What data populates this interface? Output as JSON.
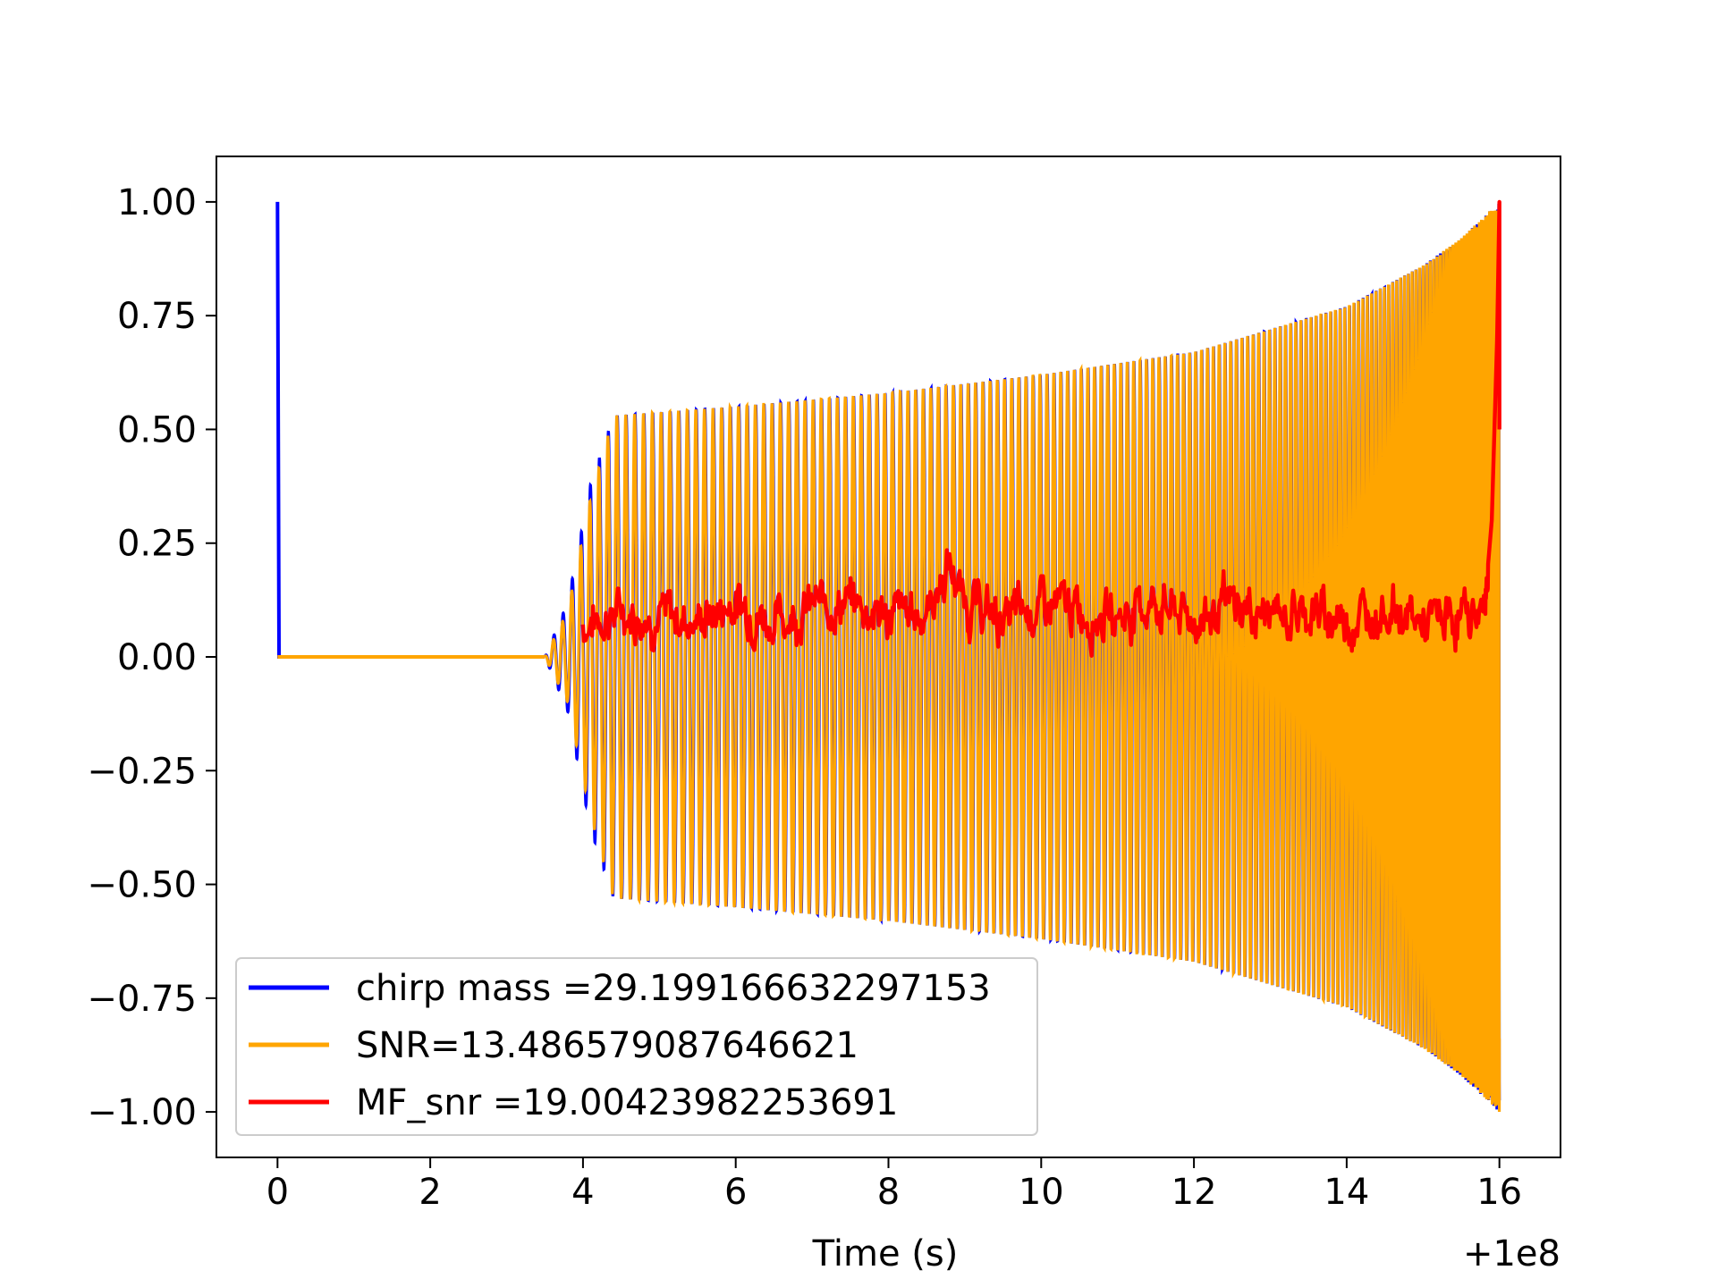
{
  "chart_data": {
    "type": "line",
    "title": "",
    "xlabel": "Time (s)",
    "ylabel": "",
    "x_offset_label": "+1e8",
    "xlim": [
      -0.8,
      16.8
    ],
    "ylim": [
      -1.1,
      1.1
    ],
    "xticks": [
      0,
      2,
      4,
      6,
      8,
      10,
      12,
      14,
      16
    ],
    "xtick_labels": [
      "0",
      "2",
      "4",
      "6",
      "8",
      "10",
      "12",
      "14",
      "16"
    ],
    "yticks": [
      1.0,
      0.75,
      0.5,
      0.25,
      0.0,
      -0.25,
      -0.5,
      -0.75,
      -1.0
    ],
    "ytick_labels": [
      "1.00",
      "0.75",
      "0.50",
      "0.25",
      "0.00",
      "−0.25",
      "−0.50",
      "−0.75",
      "−1.00"
    ],
    "grid": false,
    "legend_position": "lower-left",
    "series": [
      {
        "name": "chirp mass =29.199166632297153",
        "color": "#0000ff",
        "description": "spike to 1.00 at t=0, then zero until ~3.5 s, then chirp oscillation from ~3.5 s to 16 s; envelope about 0.53 at 4.4 s growing to 1.00 at 16 s",
        "spike": [
          [
            0,
            1.0
          ],
          [
            0.02,
            0.0
          ]
        ],
        "chirp_start": 3.5,
        "chirp_end": 16.0,
        "envelope": [
          [
            3.5,
            0.0
          ],
          [
            3.8,
            0.12
          ],
          [
            4.1,
            0.38
          ],
          [
            4.4,
            0.53
          ],
          [
            6,
            0.55
          ],
          [
            8,
            0.58
          ],
          [
            10,
            0.62
          ],
          [
            12,
            0.67
          ],
          [
            14,
            0.77
          ],
          [
            15,
            0.86
          ],
          [
            15.5,
            0.92
          ],
          [
            16,
            1.0
          ]
        ]
      },
      {
        "name": "SNR=13.486579087646621",
        "color": "#ffa500",
        "description": "same chirp waveform as blue, drawn on top",
        "chirp_start": 3.5,
        "chirp_end": 16.0,
        "envelope": [
          [
            3.5,
            0.0
          ],
          [
            3.8,
            0.1
          ],
          [
            4.1,
            0.35
          ],
          [
            4.4,
            0.53
          ],
          [
            6,
            0.55
          ],
          [
            8,
            0.58
          ],
          [
            10,
            0.62
          ],
          [
            12,
            0.67
          ],
          [
            14,
            0.77
          ],
          [
            15,
            0.86
          ],
          [
            15.5,
            0.92
          ],
          [
            16,
            1.0
          ]
        ]
      },
      {
        "name": "MF_snr =19.00423982253691",
        "color": "#ff0000",
        "description": "noisy matched filter output between about 0.0 and 0.2 from 4 s to 15.8 s, rising sharply to 1.00 at 16 s",
        "x": [
          4.0,
          4.5,
          5.0,
          5.5,
          6.0,
          6.5,
          7.0,
          7.5,
          8.0,
          8.5,
          8.8,
          9.0,
          9.5,
          10.0,
          10.5,
          11.0,
          11.5,
          12.0,
          12.5,
          13.0,
          13.5,
          14.0,
          14.5,
          15.0,
          15.5,
          15.8,
          15.9,
          15.97,
          16.0
        ],
        "y": [
          0.07,
          0.1,
          0.09,
          0.08,
          0.12,
          0.08,
          0.11,
          0.12,
          0.09,
          0.1,
          0.2,
          0.12,
          0.08,
          0.11,
          0.1,
          0.09,
          0.12,
          0.08,
          0.11,
          0.09,
          0.1,
          0.08,
          0.11,
          0.07,
          0.09,
          0.1,
          0.3,
          0.7,
          1.0
        ]
      }
    ]
  }
}
